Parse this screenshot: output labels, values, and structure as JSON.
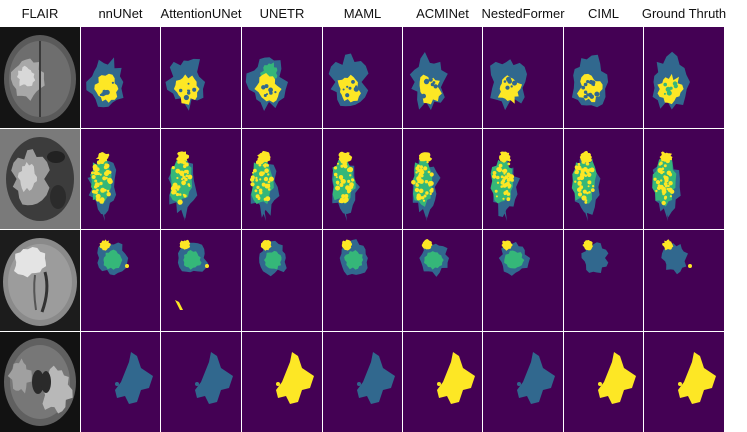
{
  "figure": {
    "columns": [
      "FLAIR",
      "nnUNet",
      "AttentionUNet",
      "UNETR",
      "MAML",
      "ACMINet",
      "NestedFormer",
      "CIML",
      "Ground Thruth"
    ],
    "rows": 4
  },
  "colors": {
    "background": "#440154",
    "edema": "#31688e",
    "enhancing": "#35b779",
    "core": "#fde725"
  }
}
